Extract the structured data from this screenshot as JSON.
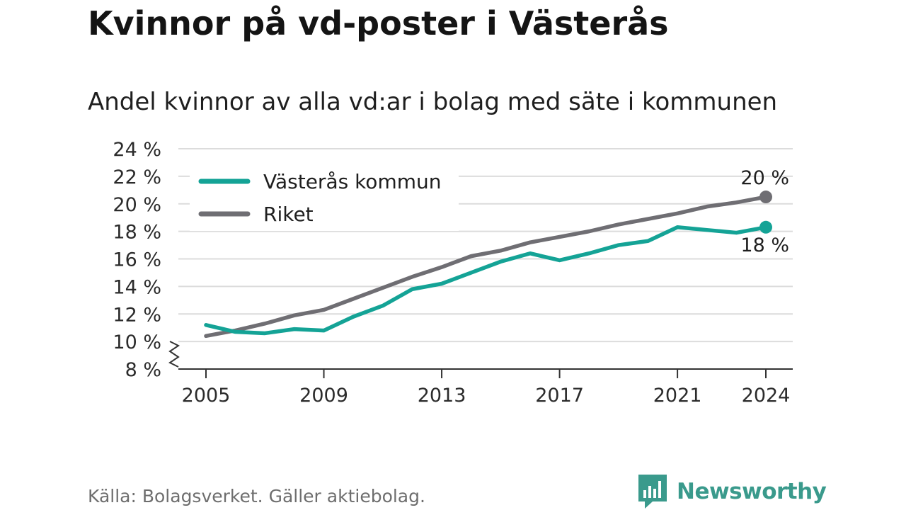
{
  "header": {
    "title": "Kvinnor på vd-poster i Västerås",
    "subtitle": "Andel kvinnor av alla vd:ar i bolag med säte i kommunen"
  },
  "footer": {
    "source": "Källa: Bolagsverket. Gäller aktiebolag.",
    "brand": "Newsworthy",
    "brand_icon": "newsworthy-bar-chart-icon"
  },
  "colors": {
    "vasteras": "#14a396",
    "riket": "#6f6e73",
    "grid": "#dcdcdc",
    "axis": "#333333",
    "brand": "#3a9a8c"
  },
  "chart_data": {
    "type": "line",
    "x": [
      2005,
      2006,
      2007,
      2008,
      2009,
      2010,
      2011,
      2012,
      2013,
      2014,
      2015,
      2016,
      2017,
      2018,
      2019,
      2020,
      2021,
      2022,
      2023,
      2024
    ],
    "series": [
      {
        "name": "Västerås kommun",
        "values": [
          11.2,
          10.7,
          10.6,
          10.9,
          10.8,
          11.8,
          12.6,
          13.8,
          14.2,
          15.0,
          15.8,
          16.4,
          15.9,
          16.4,
          17.0,
          17.3,
          18.3,
          18.1,
          17.9,
          18.3
        ],
        "end_label": "18 %"
      },
      {
        "name": "Riket",
        "values": [
          10.4,
          10.8,
          11.3,
          11.9,
          12.3,
          13.1,
          13.9,
          14.7,
          15.4,
          16.2,
          16.6,
          17.2,
          17.6,
          18.0,
          18.5,
          18.9,
          19.3,
          19.8,
          20.1,
          20.5
        ],
        "end_label": "20 %"
      }
    ],
    "y_ticks": [
      "8 %",
      "10 %",
      "12 %",
      "14 %",
      "16 %",
      "18 %",
      "20 %",
      "22 %",
      "24 %"
    ],
    "y_tick_values": [
      8,
      10,
      12,
      14,
      16,
      18,
      20,
      22,
      24
    ],
    "x_ticks": [
      "2005",
      "2009",
      "2013",
      "2017",
      "2021",
      "2024"
    ],
    "x_tick_values": [
      2005,
      2009,
      2013,
      2017,
      2021,
      2024
    ],
    "xlim": [
      2005,
      2024
    ],
    "ylim": [
      8,
      24
    ],
    "axis_break": true,
    "grid": true,
    "legend_position": "top-left"
  }
}
